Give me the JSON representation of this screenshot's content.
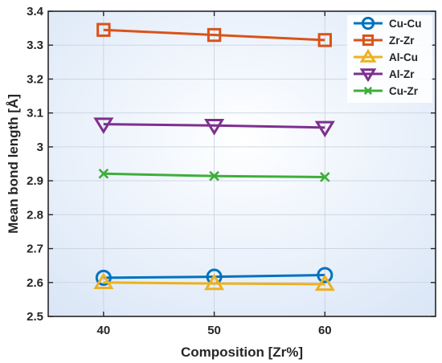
{
  "chart_data": {
    "type": "line",
    "xlabel": "Composition  [Zr%]",
    "ylabel": "Mean bond length  [Å]",
    "x": [
      40,
      50,
      60
    ],
    "xlim": [
      35,
      70
    ],
    "ylim": [
      2.5,
      3.4
    ],
    "xticks": [
      "40",
      "50",
      "60"
    ],
    "yticks": [
      "2.5",
      "2.6",
      "2.7",
      "2.8",
      "2.9",
      "3",
      "3.1",
      "3.2",
      "3.3",
      "3.4"
    ],
    "grid": true,
    "legend_position": "top-right",
    "series": [
      {
        "name": "Cu-Cu",
        "marker": "circle",
        "color": "#0072BD",
        "values": [
          2.614,
          2.617,
          2.622
        ]
      },
      {
        "name": "Zr-Zr",
        "marker": "square",
        "color": "#D95319",
        "values": [
          3.345,
          3.33,
          3.315
        ]
      },
      {
        "name": "Al-Cu",
        "marker": "triangle-up",
        "color": "#EDB120",
        "values": [
          2.6,
          2.597,
          2.595
        ]
      },
      {
        "name": "Al-Zr",
        "marker": "triangle-down",
        "color": "#7E2F8E",
        "values": [
          3.067,
          3.063,
          3.057
        ]
      },
      {
        "name": "Cu-Zr",
        "marker": "x",
        "color": "#3FAE3A",
        "values": [
          2.921,
          2.914,
          2.911
        ]
      }
    ]
  }
}
